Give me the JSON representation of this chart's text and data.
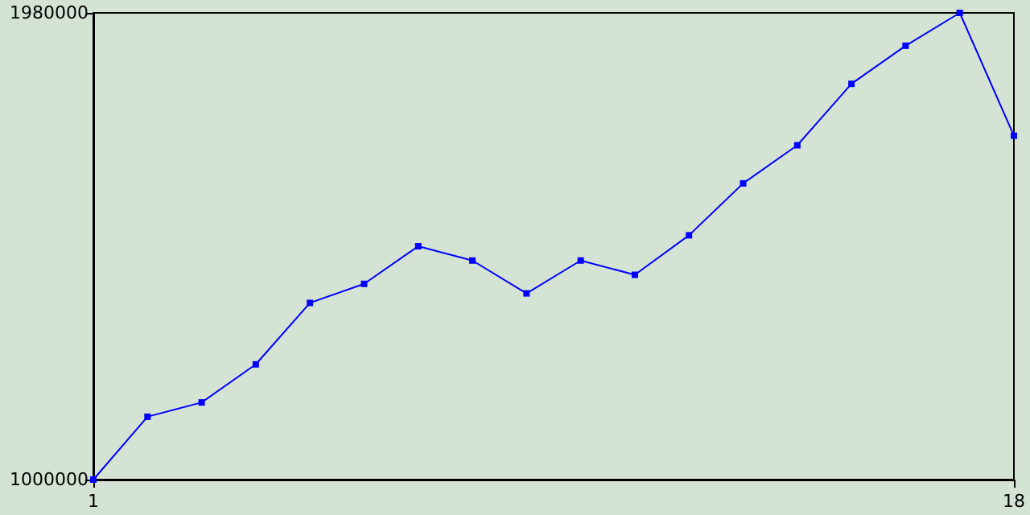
{
  "chart_data": {
    "type": "line",
    "x": [
      1,
      2,
      3,
      4,
      5,
      6,
      7,
      8,
      9,
      10,
      11,
      12,
      13,
      14,
      15,
      16,
      17,
      18
    ],
    "series": [
      {
        "color": "#0000ff",
        "values": [
          1000000,
          1132000,
          1162000,
          1242000,
          1371000,
          1411000,
          1490000,
          1460000,
          1391000,
          1460000,
          1430000,
          1513000,
          1622000,
          1702000,
          1831000,
          1911000,
          1980000,
          1722000
        ]
      }
    ],
    "xlim": [
      1,
      18
    ],
    "xticks": [
      1,
      18
    ],
    "ylim": [
      1000000,
      1980000
    ],
    "yticks": [
      1000000,
      1980000
    ],
    "grid": false,
    "marker": "square",
    "line_style": "solid"
  }
}
